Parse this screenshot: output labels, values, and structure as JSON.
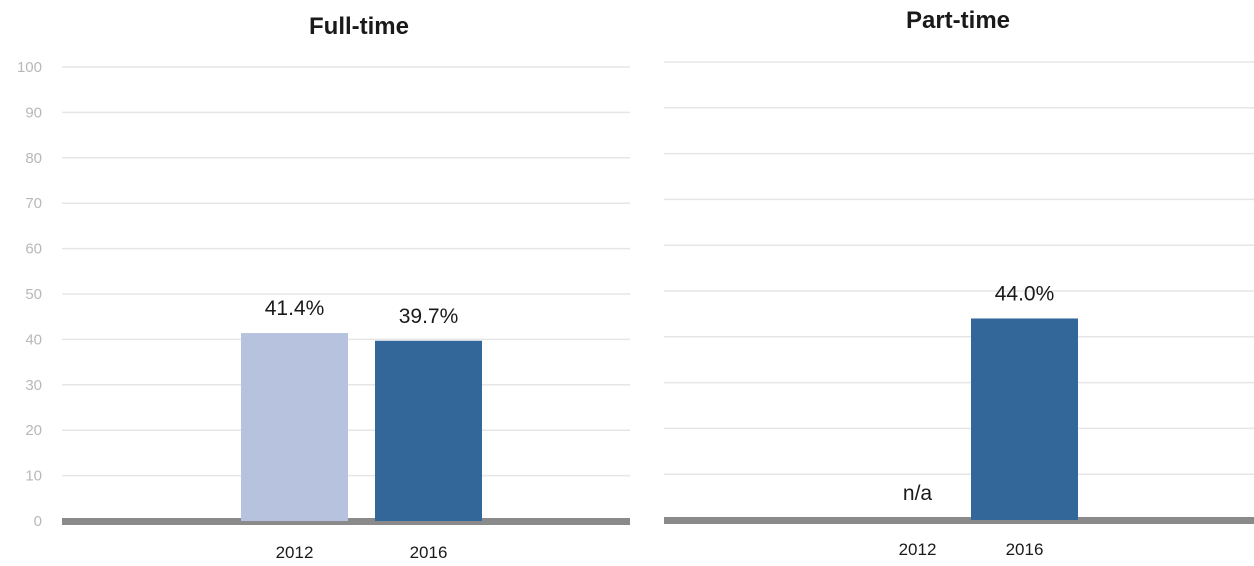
{
  "chart_data": [
    {
      "type": "bar",
      "title": "Full-time",
      "categories": [
        "2012",
        "2016"
      ],
      "values": [
        41.4,
        39.7
      ],
      "value_labels": [
        "41.4%",
        "39.7%"
      ],
      "colors": [
        "#b7c3de",
        "#336699"
      ],
      "ylim": [
        0,
        100
      ],
      "yticks": [
        "0",
        "10",
        "20",
        "30",
        "40",
        "50",
        "60",
        "70",
        "80",
        "90",
        "100"
      ],
      "grid": true,
      "legend": "none"
    },
    {
      "type": "bar",
      "title": "Part-time",
      "categories": [
        "2012",
        "2016"
      ],
      "values": [
        null,
        44.0
      ],
      "value_labels": [
        "n/a",
        "44.0%"
      ],
      "colors": [
        "#b7c3de",
        "#336699"
      ],
      "ylim": [
        0,
        100
      ],
      "grid": true,
      "legend": "none"
    }
  ]
}
